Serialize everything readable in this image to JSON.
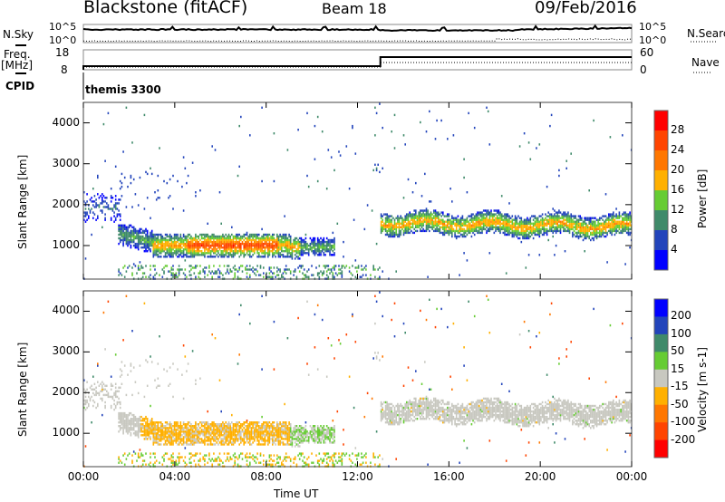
{
  "header": {
    "title": "Blackstone (fitACF)",
    "beam": "Beam 18",
    "date": "09/Feb/2016"
  },
  "status_panels": {
    "nsky_label": "N.Sky",
    "nsearch_label": "N.Search",
    "nsky_ticks": [
      "10^5",
      "10^0"
    ],
    "nsearch_ticks": [
      "10^5",
      "10^0"
    ],
    "freq_label": "Freq.",
    "freq_unit": "[MHz]",
    "freq_ticks": [
      "18",
      "8"
    ],
    "nave_label": "Nave",
    "nave_ticks": [
      "60",
      "0"
    ],
    "cpid_label": "CPID",
    "cpid_value": "themis 3300",
    "freq_mhz": {
      "before_13h": 10.5,
      "after_13h": 14.5
    },
    "nave": {
      "before_13h": 13,
      "after_13h": 22
    }
  },
  "chart_data": [
    {
      "type": "heatmap",
      "name": "power",
      "xlabel": "Time UT",
      "ylabel": "Slant Range [km]",
      "xlim": [
        0,
        24
      ],
      "ylim": [
        180,
        4500
      ],
      "x_ticks": [
        "00:00",
        "04:00",
        "08:00",
        "12:00",
        "16:00",
        "20:00",
        "00:00"
      ],
      "y_ticks": [
        "1000",
        "2000",
        "3000",
        "4000"
      ],
      "colorbar": {
        "label": "Power [dB]",
        "ticks": [
          "4",
          "8",
          "12",
          "16",
          "20",
          "24",
          "28"
        ],
        "colors": [
          "#0000ff",
          "#2244bb",
          "#3f8a6a",
          "#66cc33",
          "#ffb000",
          "#ff7700",
          "#ff4400",
          "#ff0000"
        ]
      },
      "echo_regions": [
        {
          "t": [
            1.5,
            11
          ],
          "range_center_km": 1050,
          "range_halfwidth_km": 320,
          "peak_value": 27
        },
        {
          "t": [
            13,
            24
          ],
          "range_center_km": 1550,
          "range_halfwidth_km": 280,
          "peak_value": 21
        },
        {
          "t": [
            0,
            1.6
          ],
          "range_center_km": 1900,
          "range_halfwidth_km": 350,
          "peak_value": 8
        },
        {
          "t": [
            12.7,
            13
          ],
          "range_center_km": 2900,
          "range_halfwidth_km": 150,
          "peak_value": 10
        }
      ]
    },
    {
      "type": "heatmap",
      "name": "velocity",
      "xlabel": "Time UT",
      "ylabel": "Slant Range [km]",
      "xlim": [
        0,
        24
      ],
      "ylim": [
        180,
        4500
      ],
      "x_ticks": [
        "00:00",
        "04:00",
        "08:00",
        "12:00",
        "16:00",
        "20:00",
        "00:00"
      ],
      "y_ticks": [
        "1000",
        "2000",
        "3000",
        "4000"
      ],
      "colorbar": {
        "label": "Velocity [m s-1]",
        "ticks": [
          "200",
          "100",
          "50",
          "15",
          "-15",
          "-50",
          "-100",
          "-200"
        ],
        "colors": [
          "#0000ff",
          "#2244bb",
          "#3f8a6a",
          "#66cc33",
          "#c8c8c0",
          "#ffb000",
          "#ff7700",
          "#ff4400",
          "#ff0000"
        ]
      },
      "echo_regions": [
        {
          "t": [
            2.5,
            9
          ],
          "range_center_km": 1100,
          "range_halfwidth_km": 300,
          "mean_velocity": -30
        },
        {
          "t": [
            9,
            11
          ],
          "range_center_km": 1000,
          "range_halfwidth_km": 250,
          "mean_velocity": 10
        },
        {
          "t": [
            13,
            24
          ],
          "range_center_km": 1550,
          "range_halfwidth_km": 280,
          "mean_velocity": 0
        },
        {
          "t": [
            0,
            1.6
          ],
          "range_center_km": 1900,
          "range_halfwidth_km": 350,
          "mean_velocity": 0
        }
      ]
    }
  ]
}
